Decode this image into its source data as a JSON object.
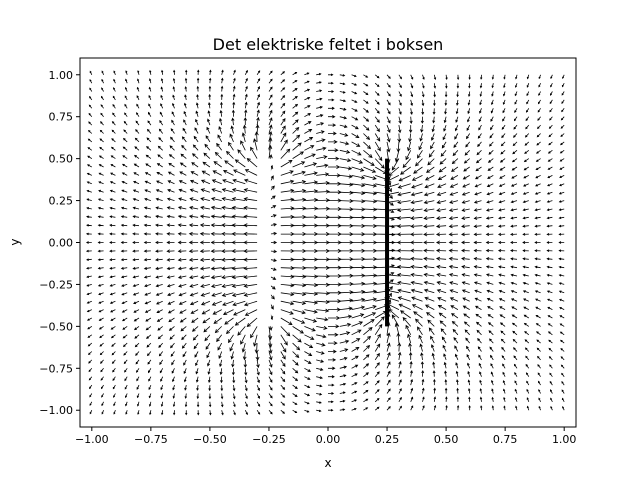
{
  "chart_data": {
    "type": "quiver",
    "title": "Det elektriske feltet i boksen",
    "xlabel": "x",
    "ylabel": "y",
    "xlim": [
      -1.05,
      1.05
    ],
    "ylim": [
      -1.1,
      1.1
    ],
    "xticks": [
      -1.0,
      -0.75,
      -0.5,
      -0.25,
      0.0,
      0.25,
      0.5,
      0.75,
      1.0
    ],
    "xtick_labels": [
      "−1.00",
      "−0.75",
      "−0.50",
      "−0.25",
      "0.00",
      "0.25",
      "0.50",
      "0.75",
      "1.00"
    ],
    "yticks": [
      -1.0,
      -0.75,
      -0.5,
      -0.25,
      0.0,
      0.25,
      0.5,
      0.75,
      1.0
    ],
    "ytick_labels": [
      "−1.00",
      "−0.75",
      "−0.50",
      "−0.25",
      "0.00",
      "0.25",
      "0.50",
      "0.75",
      "1.00"
    ],
    "grid": false,
    "field_grid": {
      "x_range": [
        -1.0,
        1.0
      ],
      "y_range": [
        -1.0,
        1.0
      ],
      "n": 41
    },
    "charges": [
      {
        "type": "line",
        "x": -0.25,
        "y_range": [
          -0.5,
          0.5
        ],
        "sign": "positive"
      },
      {
        "type": "line",
        "x": 0.25,
        "y_range": [
          -0.5,
          0.5
        ],
        "sign": "negative"
      }
    ],
    "colors": {
      "arrows": "#000000",
      "axes": "#000000",
      "background": "#ffffff"
    }
  }
}
